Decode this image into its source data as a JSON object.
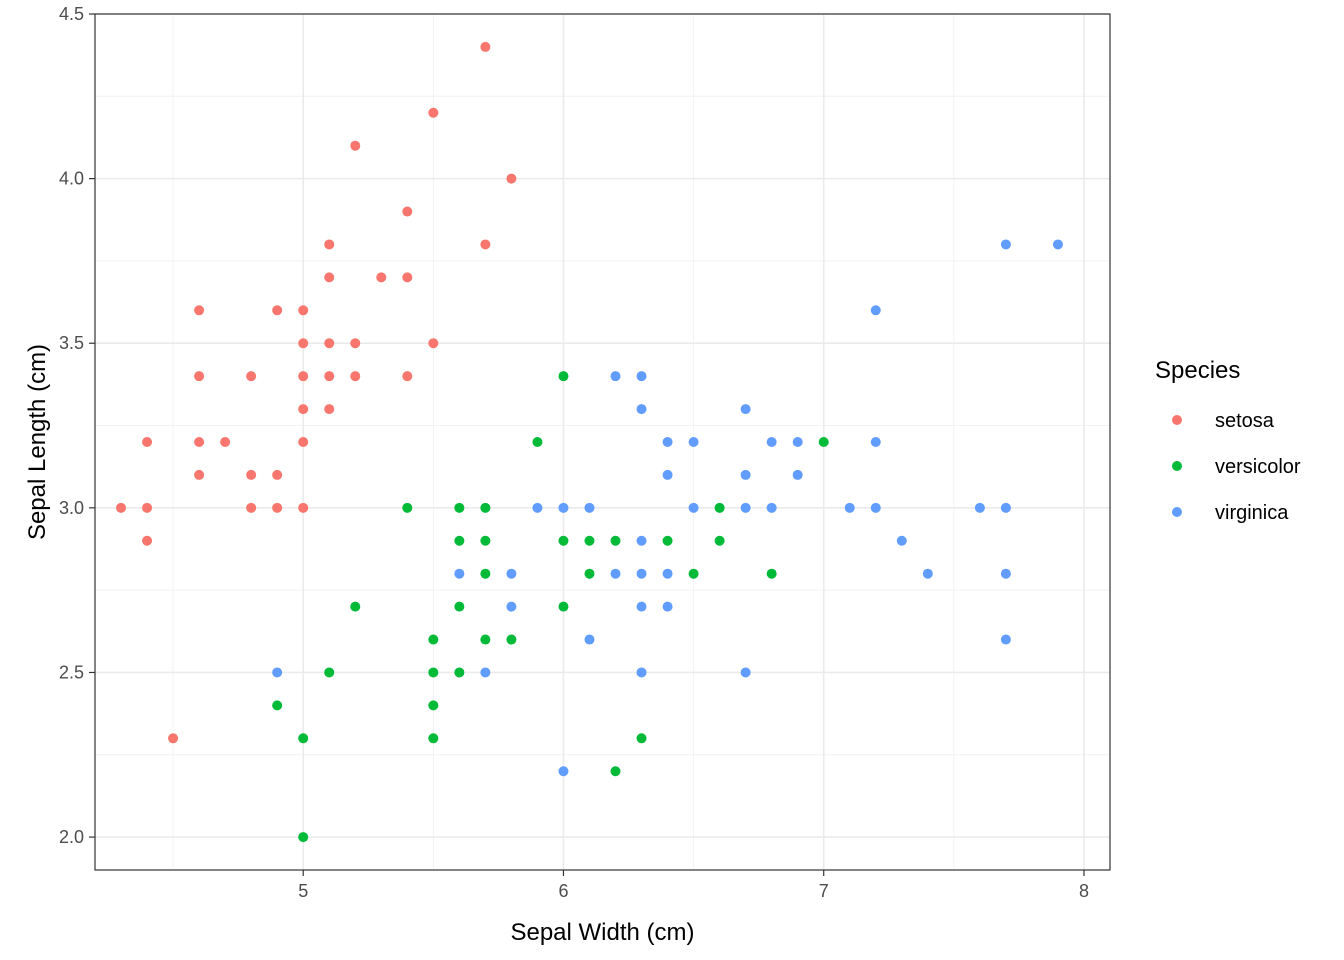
{
  "chart_data": {
    "type": "scatter",
    "title": "",
    "xlabel": "Sepal Width (cm)",
    "ylabel": "Sepal Length (cm)",
    "xlim": [
      4.2,
      8.1
    ],
    "ylim": [
      1.9,
      4.5
    ],
    "x_ticks": [
      5,
      6,
      7,
      8
    ],
    "x_tick_labels": [
      "5",
      "6",
      "7",
      "8"
    ],
    "y_ticks": [
      2.0,
      2.5,
      3.0,
      3.5,
      4.0,
      4.5
    ],
    "y_tick_labels": [
      "2.0",
      "2.5",
      "3.0",
      "3.5",
      "4.0",
      "4.5"
    ],
    "grid": true,
    "legend": {
      "title": "Species",
      "position": "right"
    },
    "series": [
      {
        "name": "setosa",
        "color": "#F8766D",
        "points": [
          [
            4.3,
            3.0
          ],
          [
            4.4,
            3.2
          ],
          [
            4.4,
            3.0
          ],
          [
            4.4,
            2.9
          ],
          [
            4.5,
            2.3
          ],
          [
            4.6,
            3.6
          ],
          [
            4.6,
            3.4
          ],
          [
            4.6,
            3.2
          ],
          [
            4.6,
            3.1
          ],
          [
            4.7,
            3.2
          ],
          [
            4.8,
            3.4
          ],
          [
            4.8,
            3.1
          ],
          [
            4.8,
            3.0
          ],
          [
            4.9,
            3.6
          ],
          [
            4.9,
            3.1
          ],
          [
            4.9,
            3.0
          ],
          [
            5.0,
            3.6
          ],
          [
            5.0,
            3.5
          ],
          [
            5.0,
            3.4
          ],
          [
            5.0,
            3.3
          ],
          [
            5.0,
            3.2
          ],
          [
            5.0,
            3.0
          ],
          [
            5.1,
            3.8
          ],
          [
            5.1,
            3.7
          ],
          [
            5.1,
            3.5
          ],
          [
            5.1,
            3.4
          ],
          [
            5.1,
            3.3
          ],
          [
            5.2,
            4.1
          ],
          [
            5.2,
            3.5
          ],
          [
            5.2,
            3.4
          ],
          [
            5.3,
            3.7
          ],
          [
            5.4,
            3.9
          ],
          [
            5.4,
            3.7
          ],
          [
            5.4,
            3.4
          ],
          [
            5.5,
            4.2
          ],
          [
            5.5,
            3.5
          ],
          [
            5.7,
            4.4
          ],
          [
            5.7,
            3.8
          ],
          [
            5.8,
            4.0
          ]
        ]
      },
      {
        "name": "versicolor",
        "color": "#00BA38",
        "points": [
          [
            4.9,
            2.4
          ],
          [
            5.0,
            2.3
          ],
          [
            5.0,
            2.0
          ],
          [
            5.1,
            2.5
          ],
          [
            5.2,
            2.7
          ],
          [
            5.4,
            3.0
          ],
          [
            5.5,
            2.6
          ],
          [
            5.5,
            2.5
          ],
          [
            5.5,
            2.4
          ],
          [
            5.5,
            2.3
          ],
          [
            5.6,
            3.0
          ],
          [
            5.6,
            2.9
          ],
          [
            5.6,
            2.7
          ],
          [
            5.6,
            2.5
          ],
          [
            5.7,
            3.0
          ],
          [
            5.7,
            2.9
          ],
          [
            5.7,
            2.8
          ],
          [
            5.7,
            2.6
          ],
          [
            5.8,
            2.6
          ],
          [
            5.9,
            3.2
          ],
          [
            6.0,
            3.4
          ],
          [
            6.0,
            2.9
          ],
          [
            6.0,
            2.7
          ],
          [
            6.1,
            2.9
          ],
          [
            6.1,
            2.8
          ],
          [
            6.2,
            2.9
          ],
          [
            6.2,
            2.2
          ],
          [
            6.3,
            2.3
          ],
          [
            6.4,
            2.9
          ],
          [
            6.5,
            2.8
          ],
          [
            6.6,
            3.0
          ],
          [
            6.6,
            2.9
          ],
          [
            6.8,
            2.8
          ],
          [
            7.0,
            3.2
          ]
        ]
      },
      {
        "name": "virginica",
        "color": "#619CFF",
        "points": [
          [
            4.9,
            2.5
          ],
          [
            5.6,
            2.8
          ],
          [
            5.7,
            2.5
          ],
          [
            5.8,
            2.8
          ],
          [
            5.8,
            2.7
          ],
          [
            5.9,
            3.0
          ],
          [
            6.0,
            3.0
          ],
          [
            6.0,
            2.2
          ],
          [
            6.1,
            3.0
          ],
          [
            6.1,
            2.6
          ],
          [
            6.2,
            3.4
          ],
          [
            6.2,
            2.8
          ],
          [
            6.3,
            3.4
          ],
          [
            6.3,
            3.3
          ],
          [
            6.3,
            2.9
          ],
          [
            6.3,
            2.8
          ],
          [
            6.3,
            2.7
          ],
          [
            6.3,
            2.5
          ],
          [
            6.4,
            3.2
          ],
          [
            6.4,
            3.1
          ],
          [
            6.4,
            2.8
          ],
          [
            6.4,
            2.7
          ],
          [
            6.5,
            3.2
          ],
          [
            6.5,
            3.0
          ],
          [
            6.7,
            3.3
          ],
          [
            6.7,
            3.1
          ],
          [
            6.7,
            3.0
          ],
          [
            6.7,
            2.5
          ],
          [
            6.8,
            3.2
          ],
          [
            6.8,
            3.0
          ],
          [
            6.9,
            3.2
          ],
          [
            6.9,
            3.1
          ],
          [
            7.1,
            3.0
          ],
          [
            7.2,
            3.6
          ],
          [
            7.2,
            3.2
          ],
          [
            7.2,
            3.0
          ],
          [
            7.3,
            2.9
          ],
          [
            7.4,
            2.8
          ],
          [
            7.6,
            3.0
          ],
          [
            7.7,
            3.8
          ],
          [
            7.7,
            3.0
          ],
          [
            7.7,
            2.8
          ],
          [
            7.7,
            2.6
          ],
          [
            7.9,
            3.8
          ]
        ]
      }
    ]
  }
}
